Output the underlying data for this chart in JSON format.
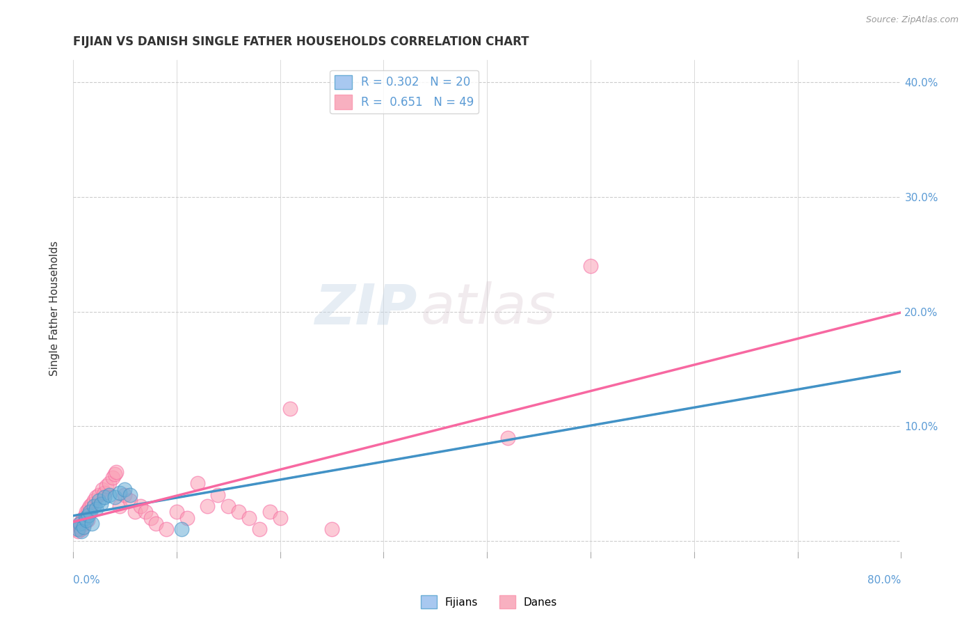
{
  "title": "FIJIAN VS DANISH SINGLE FATHER HOUSEHOLDS CORRELATION CHART",
  "source": "Source: ZipAtlas.com",
  "ylabel": "Single Father Households",
  "yticks": [
    0.0,
    0.1,
    0.2,
    0.3,
    0.4
  ],
  "ytick_labels": [
    "",
    "10.0%",
    "20.0%",
    "30.0%",
    "40.0%"
  ],
  "xticks": [
    0.0,
    0.1,
    0.2,
    0.3,
    0.4,
    0.5,
    0.6,
    0.7,
    0.8
  ],
  "fijian_scatter_x": [
    0.005,
    0.007,
    0.008,
    0.01,
    0.012,
    0.013,
    0.015,
    0.016,
    0.018,
    0.02,
    0.022,
    0.025,
    0.027,
    0.03,
    0.035,
    0.04,
    0.045,
    0.05,
    0.055,
    0.105
  ],
  "fijian_scatter_y": [
    0.01,
    0.015,
    0.008,
    0.012,
    0.02,
    0.018,
    0.022,
    0.025,
    0.015,
    0.03,
    0.028,
    0.035,
    0.032,
    0.038,
    0.04,
    0.038,
    0.042,
    0.045,
    0.04,
    0.01
  ],
  "danish_scatter_x": [
    0.003,
    0.005,
    0.006,
    0.007,
    0.008,
    0.009,
    0.01,
    0.011,
    0.012,
    0.013,
    0.014,
    0.015,
    0.016,
    0.017,
    0.018,
    0.02,
    0.022,
    0.025,
    0.028,
    0.03,
    0.032,
    0.035,
    0.038,
    0.04,
    0.042,
    0.045,
    0.05,
    0.055,
    0.06,
    0.065,
    0.07,
    0.075,
    0.08,
    0.09,
    0.1,
    0.11,
    0.12,
    0.13,
    0.14,
    0.15,
    0.16,
    0.17,
    0.18,
    0.19,
    0.2,
    0.21,
    0.25,
    0.42,
    0.5
  ],
  "danish_scatter_y": [
    0.01,
    0.008,
    0.015,
    0.012,
    0.01,
    0.018,
    0.02,
    0.015,
    0.022,
    0.025,
    0.018,
    0.028,
    0.03,
    0.025,
    0.032,
    0.035,
    0.038,
    0.04,
    0.045,
    0.042,
    0.048,
    0.05,
    0.055,
    0.058,
    0.06,
    0.03,
    0.04,
    0.035,
    0.025,
    0.03,
    0.025,
    0.02,
    0.015,
    0.01,
    0.025,
    0.02,
    0.05,
    0.03,
    0.04,
    0.03,
    0.025,
    0.02,
    0.01,
    0.025,
    0.02,
    0.115,
    0.01,
    0.09,
    0.24
  ],
  "fijian_color": "#6baed6",
  "danish_color": "#fa9fb5",
  "fijian_line_color": "#4292c6",
  "danish_line_color": "#f768a1",
  "background_color": "#ffffff",
  "watermark_zip": "ZIP",
  "watermark_atlas": "atlas",
  "xlim": [
    0.0,
    0.8
  ],
  "ylim": [
    -0.015,
    0.42
  ],
  "legend_label1": "R = 0.302   N = 20",
  "legend_label2": "R =  0.651   N = 49",
  "legend_color1": "#a8c8f0",
  "legend_color2": "#f8b0c0",
  "legend_edge1": "#6baed6",
  "legend_edge2": "#fa9fb5",
  "bottom_label1": "Fijians",
  "bottom_label2": "Danes"
}
